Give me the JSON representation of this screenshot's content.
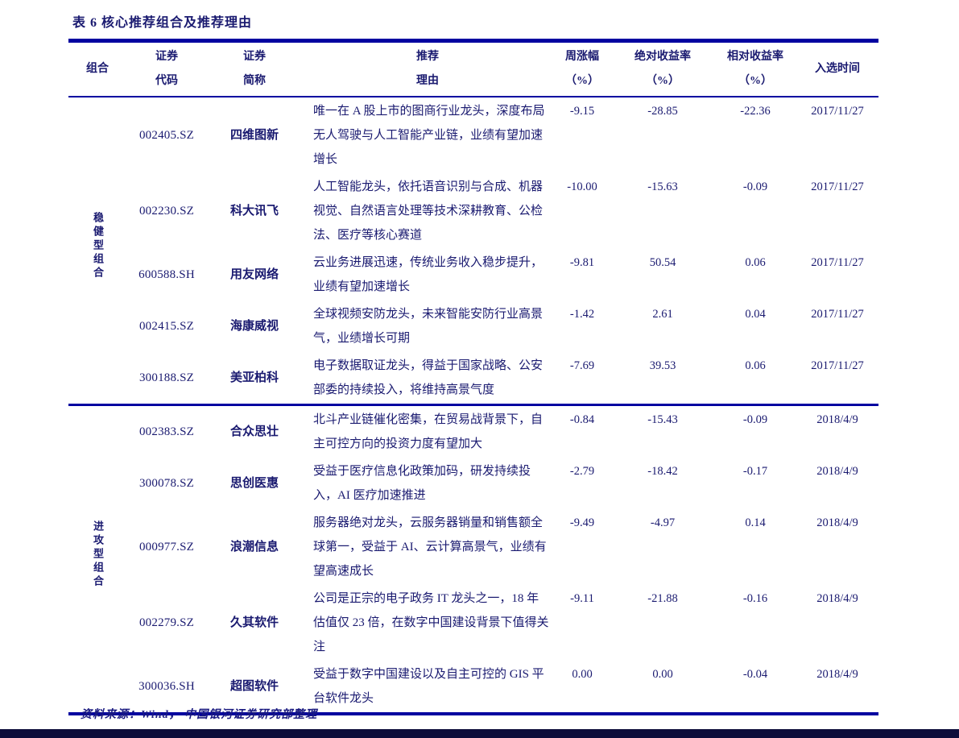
{
  "page": {
    "title": "表 6  核心推荐组合及推荐理由",
    "footer": "资料来源：Wind， 中国银河证券研究部整理"
  },
  "colors": {
    "text_navy": "#1a1a70",
    "line_navy": "#0101a0",
    "bottom_bar": "#0d0d3a"
  },
  "table": {
    "headers": {
      "group": "组合",
      "code": [
        "证券",
        "代码"
      ],
      "name": [
        "证券",
        "简称"
      ],
      "reason": [
        "推荐",
        "理由"
      ],
      "week_chg": [
        "周涨幅",
        "（%）"
      ],
      "abs_return": [
        "绝对收益率",
        "（%）"
      ],
      "rel_return": [
        "相对收益率",
        "（%）"
      ],
      "date": "入选时间"
    },
    "groups": [
      {
        "label": "稳健型组合",
        "rows": [
          {
            "code": "002405.SZ",
            "name": "四维图新",
            "reason": "唯一在 A 股上市的图商行业龙头，深度布局无人驾驶与人工智能产业链，业绩有望加速增长",
            "week": "-9.15",
            "abs": "-28.85",
            "rel": "-22.36",
            "date": "2017/11/27"
          },
          {
            "code": "002230.SZ",
            "name": "科大讯飞",
            "reason": "人工智能龙头，依托语音识别与合成、机器视觉、自然语言处理等技术深耕教育、公检法、医疗等核心赛道",
            "week": "-10.00",
            "abs": "-15.63",
            "rel": "-0.09",
            "date": "2017/11/27"
          },
          {
            "code": "600588.SH",
            "name": "用友网络",
            "reason": "云业务进展迅速，传统业务收入稳步提升，业绩有望加速增长",
            "week": "-9.81",
            "abs": "50.54",
            "rel": "0.06",
            "date": "2017/11/27"
          },
          {
            "code": "002415.SZ",
            "name": "海康威视",
            "reason": "全球视频安防龙头，未来智能安防行业高景气，业绩增长可期",
            "week": "-1.42",
            "abs": "2.61",
            "rel": "0.04",
            "date": "2017/11/27"
          },
          {
            "code": "300188.SZ",
            "name": "美亚柏科",
            "reason": "电子数据取证龙头，得益于国家战略、公安部委的持续投入，将维持高景气度",
            "week": "-7.69",
            "abs": "39.53",
            "rel": "0.06",
            "date": "2017/11/27"
          }
        ]
      },
      {
        "label": "进攻型组合",
        "rows": [
          {
            "code": "002383.SZ",
            "name": "合众思壮",
            "reason": "北斗产业链催化密集，在贸易战背景下，自主可控方向的投资力度有望加大",
            "week": "-0.84",
            "abs": "-15.43",
            "rel": "-0.09",
            "date": "2018/4/9"
          },
          {
            "code": "300078.SZ",
            "name": "思创医惠",
            "reason": "受益于医疗信息化政策加码，研发持续投入，AI 医疗加速推进",
            "week": "-2.79",
            "abs": "-18.42",
            "rel": "-0.17",
            "date": "2018/4/9"
          },
          {
            "code": "000977.SZ",
            "name": "浪潮信息",
            "reason": "服务器绝对龙头，云服务器销量和销售额全球第一，受益于 AI、云计算高景气，业绩有望高速成长",
            "week": "-9.49",
            "abs": "-4.97",
            "rel": "0.14",
            "date": "2018/4/9"
          },
          {
            "code": "002279.SZ",
            "name": "久其软件",
            "reason": "公司是正宗的电子政务 IT 龙头之一，18 年估值仅 23 倍，在数字中国建设背景下值得关注",
            "week": "-9.11",
            "abs": "-21.88",
            "rel": "-0.16",
            "date": "2018/4/9"
          },
          {
            "code": "300036.SH",
            "name": "超图软件",
            "reason": "受益于数字中国建设以及自主可控的 GIS 平台软件龙头",
            "week": "0.00",
            "abs": "0.00",
            "rel": "-0.04",
            "date": "2018/4/9"
          }
        ]
      }
    ]
  }
}
